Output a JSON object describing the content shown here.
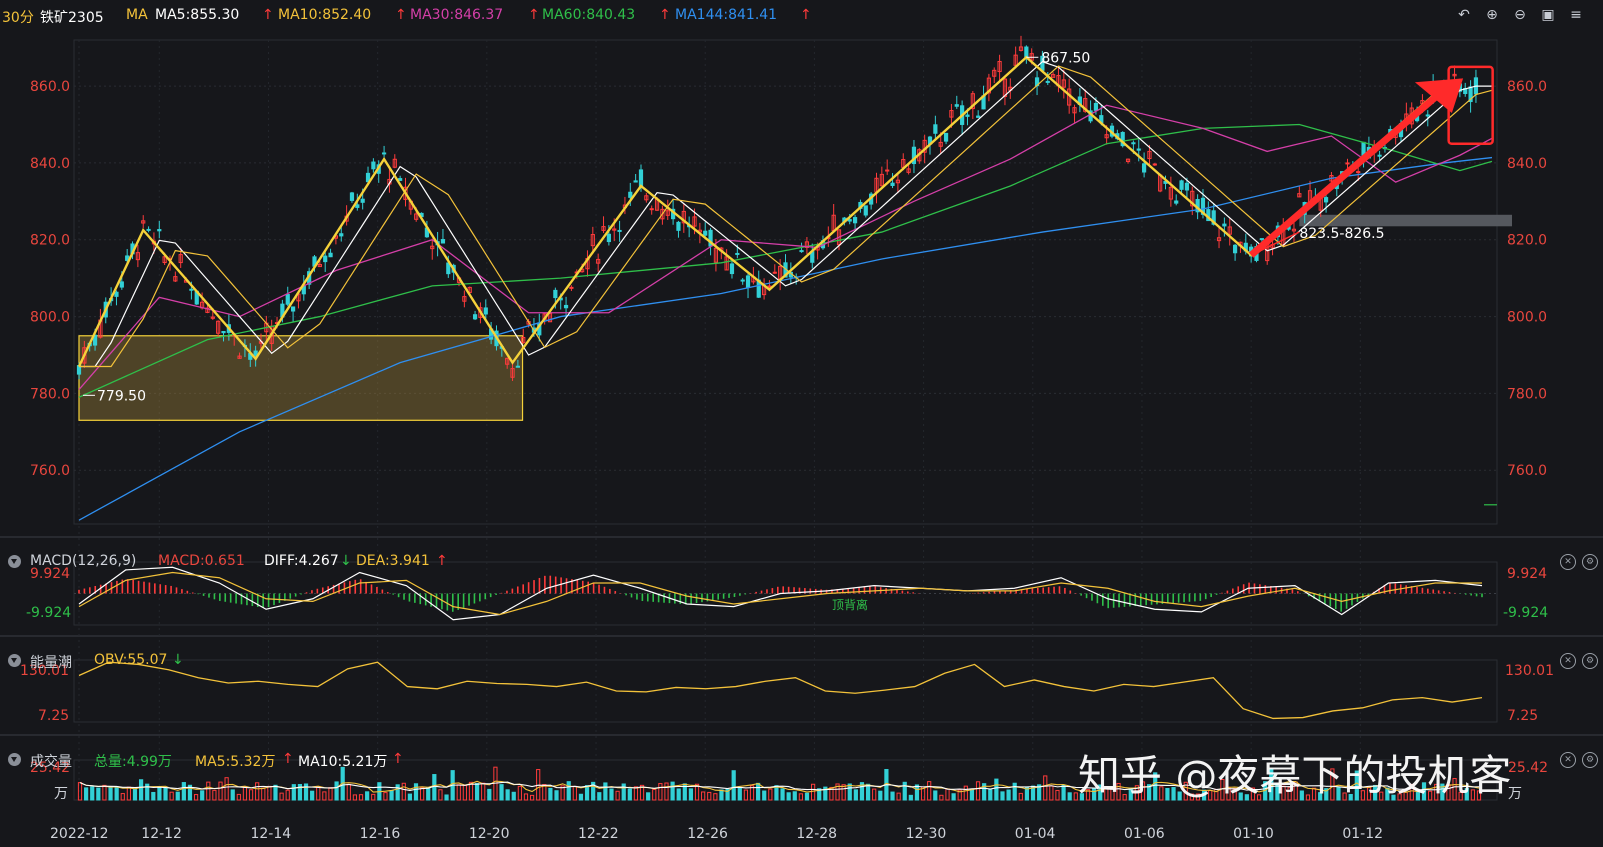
{
  "header": {
    "period": "30分",
    "symbol": "铁矿2305",
    "ma_label": "MA",
    "ma5": "MA5:855.30",
    "ma10": "MA10:852.40",
    "ma30": "MA30:846.37",
    "ma60": "MA60:840.43",
    "ma144": "MA144:841.41",
    "up_arrow": "↑"
  },
  "toolbar_icons": [
    "undo-icon",
    "zoom-in-icon",
    "zoom-out-icon",
    "layout-icon",
    "menu-icon"
  ],
  "chart_data": [
    {
      "type": "candlestick",
      "title": "铁矿2305 30分",
      "y_ticks": [
        "860.0",
        "840.0",
        "820.0",
        "800.0",
        "780.0",
        "760.0"
      ],
      "ylim": [
        746,
        872
      ],
      "x_ticks": [
        "2022-12",
        "12-12",
        "12-14",
        "12-16",
        "12-20",
        "12-22",
        "12-26",
        "12-28",
        "12-30",
        "01-04",
        "01-06",
        "01-10",
        "01-12"
      ],
      "annotations": {
        "high_label": "867.50",
        "low_label": "779.50",
        "zone_label": "823.5-826.5"
      },
      "zigzag_points": [
        [
          0,
          787
        ],
        [
          4,
          822.5
        ],
        [
          11,
          789
        ],
        [
          19,
          841
        ],
        [
          27,
          788
        ],
        [
          35,
          834
        ],
        [
          43,
          807
        ],
        [
          59,
          867.5
        ],
        [
          73,
          816
        ],
        [
          85,
          860
        ]
      ],
      "support_box": {
        "x_start": 0,
        "x_end": 27,
        "y_low": 773,
        "y_high": 795
      },
      "resistance_bar": {
        "x_start": 76,
        "x_end": 88,
        "y_low": 823.5,
        "y_high": 826.5
      },
      "ma_series": [
        {
          "name": "MA144",
          "color": "#2f8ff0",
          "points": [
            [
              0,
              747
            ],
            [
              10,
              770
            ],
            [
              20,
              788
            ],
            [
              30,
              800
            ],
            [
              40,
              806
            ],
            [
              50,
              815
            ],
            [
              60,
              822
            ],
            [
              70,
              828
            ],
            [
              78,
              836
            ],
            [
              85,
              840
            ],
            [
              88,
              841.4
            ]
          ]
        },
        {
          "name": "MA60",
          "color": "#2fbf4a",
          "points": [
            [
              0,
              779
            ],
            [
              8,
              794
            ],
            [
              15,
              800
            ],
            [
              22,
              808
            ],
            [
              30,
              810
            ],
            [
              40,
              814
            ],
            [
              50,
              822
            ],
            [
              58,
              834
            ],
            [
              64,
              845
            ],
            [
              70,
              849
            ],
            [
              76,
              850
            ],
            [
              82,
              843
            ],
            [
              86,
              838
            ],
            [
              88,
              840.4
            ]
          ]
        },
        {
          "name": "MA30",
          "color": "#d43fa8",
          "points": [
            [
              0,
              781
            ],
            [
              5,
              805
            ],
            [
              10,
              800
            ],
            [
              16,
              812
            ],
            [
              22,
              820
            ],
            [
              28,
              801
            ],
            [
              33,
              801
            ],
            [
              40,
              820
            ],
            [
              46,
              818
            ],
            [
              52,
              830
            ],
            [
              58,
              841
            ],
            [
              64,
              855
            ],
            [
              70,
              849
            ],
            [
              74,
              843
            ],
            [
              78,
              847
            ],
            [
              82,
              835
            ],
            [
              86,
              842
            ],
            [
              88,
              846.4
            ]
          ]
        }
      ]
    },
    {
      "type": "line",
      "title": "MACD(12,26,9)",
      "legend": [
        "MACD:0.651",
        "DIFF:4.267",
        "DEA:3.941"
      ],
      "y_ticks": [
        "9.924",
        "-9.924"
      ],
      "ylim": [
        -12,
        12
      ],
      "annotation": "顶背离",
      "series": [
        {
          "name": "DIFF",
          "color": "#ffffff",
          "values": [
            -4,
            9,
            10,
            4,
            -6,
            -2,
            8,
            3,
            -10,
            -8,
            2,
            7,
            2,
            -4,
            -5,
            0,
            1,
            3,
            2,
            1,
            2,
            6,
            -2,
            -6,
            -7,
            2,
            3,
            -8,
            4,
            5,
            3
          ]
        },
        {
          "name": "DEA",
          "color": "#f3c23a",
          "values": [
            -5,
            5,
            8,
            6,
            -2,
            -3,
            4,
            5,
            -5,
            -8,
            -3,
            4,
            4,
            -1,
            -4,
            -2,
            0,
            1,
            2,
            1,
            1,
            4,
            2,
            -3,
            -5,
            -1,
            2,
            -3,
            1,
            4,
            4
          ]
        }
      ]
    },
    {
      "type": "line",
      "title": "能量潮",
      "legend": [
        "OBV:55.07"
      ],
      "y_ticks": [
        "130.01",
        "7.25"
      ],
      "ylim": [
        0,
        140
      ],
      "series": [
        {
          "name": "OBV",
          "color": "#f3c23a",
          "values": [
            105,
            135,
            130,
            118,
            100,
            88,
            92,
            85,
            80,
            120,
            135,
            80,
            75,
            92,
            87,
            85,
            80,
            90,
            70,
            68,
            78,
            75,
            80,
            92,
            100,
            70,
            65,
            72,
            80,
            110,
            130,
            80,
            95,
            80,
            70,
            85,
            80,
            90,
            100,
            30,
            8,
            10,
            25,
            32,
            50,
            55,
            45,
            55
          ]
        }
      ]
    },
    {
      "type": "bar",
      "title": "成交量",
      "legend": [
        "总量:4.99万",
        "MA5:5.32万",
        "MA10:5.21万"
      ],
      "y_ticks": [
        "25.42",
        "万"
      ],
      "ylim": [
        0,
        26
      ]
    }
  ],
  "panels": {
    "macd": {
      "title": "MACD(12,26,9)",
      "macd": "MACD:0.651",
      "diff": "DIFF:4.267",
      "dea": "DEA:3.941",
      "up": "↑",
      "down": "↓",
      "tick_high": "9.924",
      "tick_low": "-9.924",
      "note": "顶背离"
    },
    "obv": {
      "title": "能量潮",
      "obv": "OBV:55.07",
      "down": "↓",
      "tick_high": "130.01",
      "tick_low": "7.25"
    },
    "vol": {
      "title": "成交量",
      "total": "总量:4.99万",
      "ma5": "MA5:5.32万",
      "ma10": "MA10:5.21万",
      "up": "↑",
      "tick_high": "25.42",
      "unit": "万"
    }
  },
  "watermark": "知乎 @夜幕下的投机客",
  "colors": {
    "up": "#ff3b3b",
    "down": "#32d0d6",
    "zigzag": "#f5d23a",
    "ma5": "#ffffff",
    "ma10": "#f3c23a",
    "ma30": "#d43fa8",
    "ma60": "#2fbf4a",
    "ma144": "#2f8ff0",
    "axis_red": "#e8463e",
    "background": "#16171b"
  }
}
